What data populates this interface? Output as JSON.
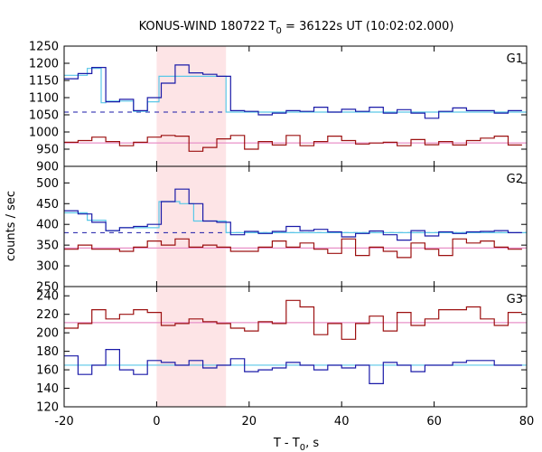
{
  "chart_data": {
    "type": "line",
    "title": {
      "main": "KONUS-WIND 180722 T",
      "sub": "0",
      "rest": " = 36122s UT (10:02:02.000)"
    },
    "xlabel": {
      "main": "T - T",
      "sub": "0",
      "rest": ", s"
    },
    "ylabel": "counts / sec",
    "xlim": [
      -20,
      80
    ],
    "xticks": [
      -20,
      0,
      20,
      40,
      60,
      80
    ],
    "highlight_interval": [
      0,
      15
    ],
    "grid": false,
    "colors": {
      "counts_blue": "#1a1aa8",
      "counts_red": "#9c1010",
      "fit_cyan": "#5ac8e8",
      "fit_pink": "#e890c8",
      "background_dashed": "#1a1aa8",
      "highlight_fill": "#fde4e6"
    },
    "panels": [
      {
        "label": "G1",
        "ylim": [
          900,
          1250
        ],
        "yticks": [
          900,
          950,
          1000,
          1050,
          1100,
          1150,
          1200,
          1250
        ],
        "background_level": 1058,
        "blue_counts": {
          "edges": [
            -20,
            -17,
            -14,
            -11,
            -8,
            -5,
            -2,
            1,
            4,
            7,
            10,
            13,
            16,
            19,
            22,
            25,
            28,
            31,
            34,
            37,
            40,
            43,
            46,
            49,
            52,
            55,
            58,
            61,
            64,
            67,
            70,
            73,
            76,
            79
          ],
          "values": [
            1155,
            1170,
            1188,
            1088,
            1095,
            1062,
            1100,
            1142,
            1195,
            1172,
            1168,
            1162,
            1062,
            1060,
            1050,
            1055,
            1062,
            1060,
            1072,
            1058,
            1066,
            1060,
            1072,
            1055,
            1065,
            1055,
            1040,
            1060,
            1070,
            1062,
            1062,
            1055,
            1062
          ]
        },
        "cyan_fit": {
          "edges": [
            -20,
            -15,
            -12,
            -11,
            -5,
            -2,
            0.5,
            15,
            80
          ],
          "values": [
            1165,
            1185,
            1085,
            1090,
            1060,
            1088,
            1162,
            1058
          ]
        },
        "red_counts": {
          "edges": [
            -20,
            -17,
            -14,
            -11,
            -8,
            -5,
            -2,
            1,
            4,
            7,
            10,
            13,
            16,
            19,
            22,
            25,
            28,
            31,
            34,
            37,
            40,
            43,
            46,
            49,
            52,
            55,
            58,
            61,
            64,
            67,
            70,
            73,
            76,
            79
          ],
          "values": [
            970,
            975,
            985,
            972,
            960,
            970,
            985,
            990,
            988,
            944,
            955,
            980,
            990,
            950,
            972,
            962,
            990,
            960,
            972,
            988,
            975,
            965,
            968,
            970,
            960,
            978,
            963,
            972,
            962,
            975,
            982,
            988,
            962
          ]
        },
        "pink_fit": {
          "level": 968
        }
      },
      {
        "label": "G2",
        "ylim": [
          250,
          540
        ],
        "yticks": [
          250,
          300,
          350,
          400,
          450,
          500
        ],
        "background_level": 380,
        "blue_counts": {
          "edges": [
            -20,
            -17,
            -14,
            -11,
            -8,
            -5,
            -2,
            1,
            4,
            7,
            10,
            13,
            16,
            19,
            22,
            25,
            28,
            31,
            34,
            37,
            40,
            43,
            46,
            49,
            52,
            55,
            58,
            61,
            64,
            67,
            70,
            73,
            76,
            79
          ],
          "values": [
            433,
            425,
            405,
            385,
            392,
            395,
            400,
            455,
            485,
            450,
            408,
            405,
            375,
            383,
            378,
            383,
            395,
            385,
            388,
            382,
            370,
            378,
            384,
            375,
            362,
            385,
            372,
            382,
            378,
            382,
            383,
            385,
            380
          ]
        },
        "cyan_fit": {
          "edges": [
            -20,
            -15,
            -11,
            -8,
            0.5,
            5,
            8,
            15,
            80
          ],
          "values": [
            428,
            410,
            385,
            392,
            455,
            450,
            408,
            380
          ]
        },
        "red_counts": {
          "edges": [
            -20,
            -17,
            -14,
            -11,
            -8,
            -5,
            -2,
            1,
            4,
            7,
            10,
            13,
            16,
            19,
            22,
            25,
            28,
            31,
            34,
            37,
            40,
            43,
            46,
            49,
            52,
            55,
            58,
            61,
            64,
            67,
            70,
            73,
            76,
            79
          ],
          "values": [
            340,
            350,
            340,
            340,
            335,
            345,
            360,
            350,
            365,
            345,
            350,
            345,
            335,
            335,
            345,
            360,
            345,
            355,
            340,
            330,
            365,
            325,
            345,
            335,
            320,
            355,
            340,
            325,
            365,
            355,
            360,
            345,
            340
          ]
        },
        "pink_fit": {
          "level": 343
        }
      },
      {
        "label": "G3",
        "ylim": [
          120,
          250
        ],
        "yticks": [
          120,
          140,
          160,
          180,
          200,
          220,
          240
        ],
        "background_level": null,
        "blue_counts": {
          "edges": [
            -20,
            -17,
            -14,
            -11,
            -8,
            -5,
            -2,
            1,
            4,
            7,
            10,
            13,
            16,
            19,
            22,
            25,
            28,
            31,
            34,
            37,
            40,
            43,
            46,
            49,
            52,
            55,
            58,
            61,
            64,
            67,
            70,
            73,
            76,
            79
          ],
          "values": [
            175,
            155,
            165,
            182,
            160,
            155,
            170,
            168,
            165,
            170,
            162,
            165,
            172,
            158,
            160,
            162,
            168,
            165,
            160,
            165,
            162,
            165,
            145,
            168,
            165,
            158,
            165,
            165,
            168,
            170,
            170,
            165,
            165
          ]
        },
        "cyan_fit": {
          "level": 165
        },
        "red_counts": {
          "edges": [
            -20,
            -17,
            -14,
            -11,
            -8,
            -5,
            -2,
            1,
            4,
            7,
            10,
            13,
            16,
            19,
            22,
            25,
            28,
            31,
            34,
            37,
            40,
            43,
            46,
            49,
            52,
            55,
            58,
            61,
            64,
            67,
            70,
            73,
            76,
            79
          ],
          "values": [
            205,
            210,
            225,
            215,
            220,
            225,
            222,
            208,
            210,
            215,
            212,
            210,
            205,
            202,
            212,
            210,
            235,
            228,
            198,
            210,
            193,
            210,
            218,
            202,
            222,
            208,
            215,
            225,
            225,
            228,
            215,
            208,
            222
          ]
        },
        "pink_fit": {
          "level": 211
        }
      }
    ]
  }
}
